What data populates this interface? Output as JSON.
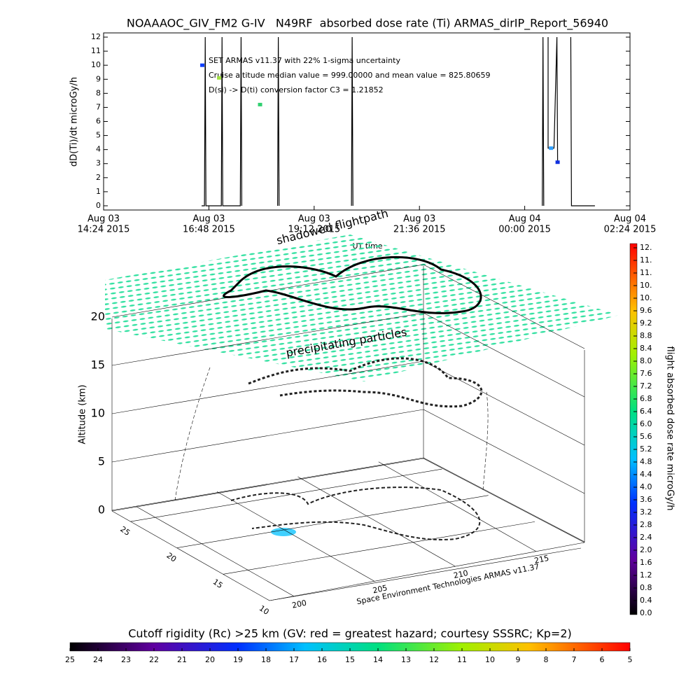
{
  "chart_data": [
    {
      "type": "line",
      "title": "NOAAAOC_GIV_FM2 G-IV   N49RF  absorbed dose rate (Ti) ARMAS_dirIP_Report_56940",
      "xlabel": "UT time",
      "ylabel": "dD(Ti)/dt microGy/h",
      "annotations": [
        "SET ARMAS v11.37 with 22% 1-sigma uncertainty",
        "Cruise altitude median value = 999.00000 and mean value = 825.80659",
        "D(si) -> D(ti) conversion factor C3 = 1.21852"
      ],
      "xlim": [
        "2015-08-03 14:24",
        "2015-08-04 02:24"
      ],
      "xticks": [
        {
          "value": "2015-08-03 14:24",
          "label": [
            "Aug 03",
            "14:24 2015"
          ]
        },
        {
          "value": "2015-08-03 16:48",
          "label": [
            "Aug 03",
            "16:48 2015"
          ]
        },
        {
          "value": "2015-08-03 19:12",
          "label": [
            "Aug 03",
            "19:12 2015"
          ]
        },
        {
          "value": "2015-08-03 21:36",
          "label": [
            "Aug 03",
            "21:36 2015"
          ]
        },
        {
          "value": "2015-08-04 00:00",
          "label": [
            "Aug 04",
            "00:00 2015"
          ]
        },
        {
          "value": "2015-08-04 02:24",
          "label": [
            "Aug 04",
            "02:24 2015"
          ]
        }
      ],
      "ylim": [
        -0.3,
        12.3
      ],
      "yticks": [
        0,
        1,
        2,
        3,
        4,
        5,
        6,
        7,
        8,
        9,
        10,
        11,
        12
      ],
      "series": [
        {
          "color": "#000000",
          "x": [
            "2015-08-03 16:38",
            "2015-08-03 16:42",
            "2015-08-03 16:43",
            "2015-08-03 16:44",
            "2015-08-03 17:05",
            "2015-08-03 17:06",
            "2015-08-03 17:07",
            "2015-08-03 17:31",
            "2015-08-03 17:32",
            "2015-08-03 17:33",
            "2015-08-03 18:00",
            "2015-08-03 18:22",
            "2015-08-03 18:23",
            "2015-08-03 18:24",
            "2015-08-03 19:00",
            "2015-08-03 20:03",
            "2015-08-03 20:04",
            "2015-08-03 20:05",
            "2015-08-03 22:00",
            "2015-08-04 00:24",
            "2015-08-04 00:25",
            "2015-08-04 00:26",
            "2015-08-04 00:30",
            "2015-08-04 00:32",
            "2015-08-04 00:32",
            "2015-08-04 00:40",
            "2015-08-04 00:44",
            "2015-08-04 00:45",
            "2015-08-04 00:50",
            "2015-08-04 01:03",
            "2015-08-04 01:04",
            "2015-08-04 01:05",
            "2015-08-04 01:36"
          ],
          "values": [
            0,
            0,
            12,
            0,
            0,
            12,
            0,
            0,
            12,
            0,
            null,
            0,
            12,
            0,
            null,
            0,
            12,
            0,
            null,
            0,
            12,
            0,
            null,
            12,
            4.1,
            4.1,
            12,
            3.1,
            null,
            12,
            0,
            0,
            0
          ]
        }
      ],
      "points": {
        "x": [
          "2015-08-03 16:39",
          "2015-08-03 17:02",
          "2015-08-03 17:58",
          "2015-08-04 00:36",
          "2015-08-04 00:45"
        ],
        "values": [
          10,
          9.1,
          7.2,
          4.1,
          3.1
        ],
        "colors": [
          "#1040ff",
          "#a0e040",
          "#30d070",
          "#30a0ff",
          "#1030e0"
        ]
      }
    },
    {
      "type": "surface3d",
      "zlabel": "Altitude (km)",
      "zlim": [
        0,
        20
      ],
      "zticks": [
        0,
        5,
        10,
        15,
        20
      ],
      "ylim": [
        27,
        10
      ],
      "yticks": [
        25,
        20,
        15,
        10
      ],
      "xlim": [
        198.5,
        218
      ],
      "xticks": [
        200,
        205,
        210,
        215
      ],
      "annotations": [
        "shadowed flightpath",
        "precipitating particles"
      ],
      "credit": "Space Environment Technologies ARMAS v11.37"
    },
    {
      "type": "colorbar",
      "label": "flight absorbed dose rate microGy/h",
      "lim": [
        0,
        12
      ],
      "ticks": [
        {
          "value": 0,
          "label": "0.0"
        },
        {
          "value": 0.4,
          "label": "0.4"
        },
        {
          "value": 0.8,
          "label": "0.8"
        },
        {
          "value": 1.2,
          "label": "1.2"
        },
        {
          "value": 1.6,
          "label": "1.6"
        },
        {
          "value": 2,
          "label": "2.0"
        },
        {
          "value": 2.4,
          "label": "2.4"
        },
        {
          "value": 2.8,
          "label": "2.8"
        },
        {
          "value": 3.2,
          "label": "3.2"
        },
        {
          "value": 3.6,
          "label": "3.6"
        },
        {
          "value": 4,
          "label": "4.0"
        },
        {
          "value": 4.4,
          "label": "4.4"
        },
        {
          "value": 4.8,
          "label": "4.8"
        },
        {
          "value": 5.2,
          "label": "5.2"
        },
        {
          "value": 5.6,
          "label": "5.6"
        },
        {
          "value": 6,
          "label": "6.0"
        },
        {
          "value": 6.4,
          "label": "6.4"
        },
        {
          "value": 6.8,
          "label": "6.8"
        },
        {
          "value": 7.2,
          "label": "7.2"
        },
        {
          "value": 7.6,
          "label": "7.6"
        },
        {
          "value": 8,
          "label": "8.0"
        },
        {
          "value": 8.4,
          "label": "8.4"
        },
        {
          "value": 8.8,
          "label": "8.8"
        },
        {
          "value": 9.2,
          "label": "9.2"
        },
        {
          "value": 9.6,
          "label": "9.6"
        },
        {
          "value": 10,
          "label": "10."
        },
        {
          "value": 10.4,
          "label": "10."
        },
        {
          "value": 10.8,
          "label": "11."
        },
        {
          "value": 11.2,
          "label": "11."
        },
        {
          "value": 11.6,
          "label": "12."
        }
      ]
    },
    {
      "type": "colorbar",
      "label": "Cutoff rigidity (Rc) >25 km (GV: red = greatest hazard; courtesy SSSRC; Kp=2)",
      "lim": [
        25,
        5
      ],
      "ticks": [
        25,
        24,
        23,
        22,
        21,
        20,
        19,
        18,
        17,
        16,
        15,
        14,
        13,
        12,
        11,
        10,
        9,
        8,
        7,
        6,
        5
      ]
    }
  ]
}
